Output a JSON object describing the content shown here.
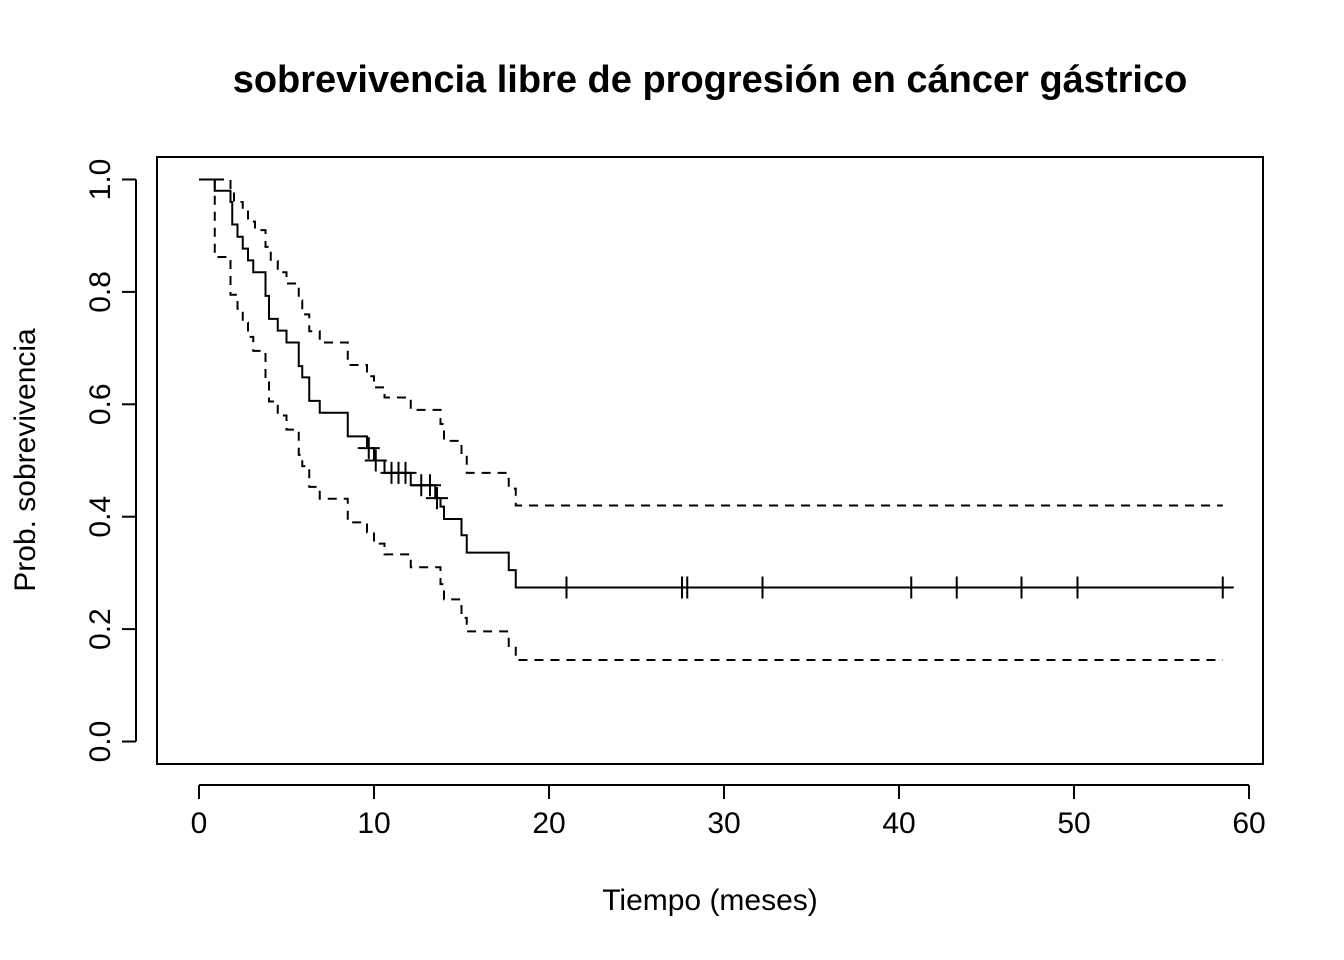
{
  "chart_data": {
    "type": "line",
    "title": "sobrevivencia libre de progresión en cáncer gástrico",
    "xlabel": "Tiempo (meses)",
    "ylabel": "Prob. sobrevivencia",
    "xlim": [
      -2.4,
      60.8
    ],
    "ylim": [
      -0.04,
      1.04
    ],
    "x_ticks": [
      0,
      10,
      20,
      30,
      40,
      50,
      60
    ],
    "x_tick_labels": [
      "0",
      "10",
      "20",
      "30",
      "40",
      "50",
      "60"
    ],
    "y_ticks": [
      0.0,
      0.2,
      0.4,
      0.6,
      0.8,
      1.0
    ],
    "y_tick_labels": [
      "0.0",
      "0.2",
      "0.4",
      "0.6",
      "0.8",
      "1.0"
    ],
    "grid": false,
    "legend": "none",
    "series": [
      {
        "role": "estimate",
        "style": "solid",
        "color": "#000000",
        "steps": [
          [
            0,
            1.0
          ],
          [
            0.9,
            0.98
          ],
          [
            1.8,
            0.96
          ],
          [
            1.9,
            0.92
          ],
          [
            2.2,
            0.898
          ],
          [
            2.5,
            0.877
          ],
          [
            2.8,
            0.856
          ],
          [
            3.1,
            0.835
          ],
          [
            3.8,
            0.793
          ],
          [
            4.0,
            0.752
          ],
          [
            4.5,
            0.731
          ],
          [
            5.0,
            0.71
          ],
          [
            5.7,
            0.668
          ],
          [
            5.9,
            0.648
          ],
          [
            6.3,
            0.606
          ],
          [
            6.9,
            0.585
          ],
          [
            8.5,
            0.543
          ],
          [
            9.6,
            0.522
          ],
          [
            10.0,
            0.5
          ],
          [
            10.4,
            0.5
          ],
          [
            10.6,
            0.478
          ],
          [
            12.1,
            0.456
          ],
          [
            13.5,
            0.433
          ],
          [
            13.8,
            0.418
          ],
          [
            14.0,
            0.396
          ],
          [
            15.0,
            0.367
          ],
          [
            15.3,
            0.336
          ],
          [
            17.7,
            0.305
          ],
          [
            18.1,
            0.274
          ],
          [
            59.0,
            0.274
          ]
        ],
        "censor_marks": [
          [
            9.7,
            0.522
          ],
          [
            10.1,
            0.5
          ],
          [
            11.0,
            0.478
          ],
          [
            11.4,
            0.478
          ],
          [
            11.8,
            0.478
          ],
          [
            12.7,
            0.456
          ],
          [
            13.2,
            0.456
          ],
          [
            13.6,
            0.433
          ],
          [
            21.0,
            0.274
          ],
          [
            27.6,
            0.274
          ],
          [
            27.9,
            0.274
          ],
          [
            32.2,
            0.274
          ],
          [
            40.7,
            0.274
          ],
          [
            43.3,
            0.274
          ],
          [
            47.0,
            0.274
          ],
          [
            50.2,
            0.274
          ],
          [
            58.5,
            0.274
          ]
        ]
      },
      {
        "role": "upper 95% CI",
        "style": "dashed",
        "color": "#000000",
        "steps": [
          [
            0,
            1.0
          ],
          [
            1.8,
            0.98
          ],
          [
            2.0,
            0.96
          ],
          [
            2.5,
            0.945
          ],
          [
            2.8,
            0.925
          ],
          [
            3.2,
            0.91
          ],
          [
            3.8,
            0.88
          ],
          [
            4.1,
            0.855
          ],
          [
            4.5,
            0.835
          ],
          [
            5.0,
            0.815
          ],
          [
            5.7,
            0.785
          ],
          [
            5.9,
            0.76
          ],
          [
            6.3,
            0.73
          ],
          [
            6.9,
            0.71
          ],
          [
            8.5,
            0.67
          ],
          [
            9.6,
            0.65
          ],
          [
            10.0,
            0.63
          ],
          [
            10.6,
            0.612
          ],
          [
            12.1,
            0.59
          ],
          [
            13.8,
            0.565
          ],
          [
            14.0,
            0.535
          ],
          [
            15.0,
            0.51
          ],
          [
            15.3,
            0.478
          ],
          [
            17.7,
            0.45
          ],
          [
            18.1,
            0.42
          ],
          [
            58.5,
            0.42
          ]
        ]
      },
      {
        "role": "lower 95% CI",
        "style": "dashed",
        "color": "#000000",
        "steps": [
          [
            0,
            1.0
          ],
          [
            0.9,
            0.862
          ],
          [
            1.8,
            0.795
          ],
          [
            2.2,
            0.77
          ],
          [
            2.5,
            0.745
          ],
          [
            2.8,
            0.72
          ],
          [
            3.1,
            0.695
          ],
          [
            3.8,
            0.645
          ],
          [
            4.0,
            0.605
          ],
          [
            4.5,
            0.58
          ],
          [
            5.0,
            0.555
          ],
          [
            5.7,
            0.51
          ],
          [
            5.9,
            0.49
          ],
          [
            6.3,
            0.453
          ],
          [
            6.9,
            0.432
          ],
          [
            8.5,
            0.39
          ],
          [
            9.6,
            0.372
          ],
          [
            10.0,
            0.352
          ],
          [
            10.6,
            0.333
          ],
          [
            12.1,
            0.31
          ],
          [
            13.8,
            0.28
          ],
          [
            14.0,
            0.253
          ],
          [
            15.0,
            0.22
          ],
          [
            15.3,
            0.196
          ],
          [
            17.7,
            0.17
          ],
          [
            18.1,
            0.145
          ],
          [
            58.5,
            0.145
          ]
        ]
      }
    ]
  }
}
